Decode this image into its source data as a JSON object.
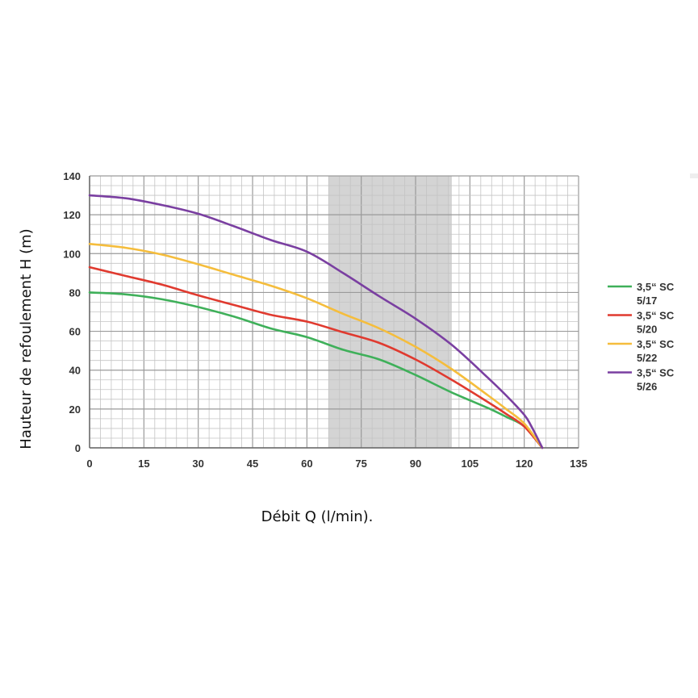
{
  "chart_data": {
    "type": "line",
    "xlabel": "Débit Q (l/min).",
    "ylabel": "Hauteur de refoulement H (m)",
    "xlim": [
      0,
      135
    ],
    "ylim": [
      0,
      140
    ],
    "xticks": [
      "0",
      "15",
      "30",
      "45",
      "60",
      "75",
      "90",
      "105",
      "120",
      "135"
    ],
    "yticks": [
      "0",
      "20",
      "40",
      "60",
      "80",
      "100",
      "120",
      "140"
    ],
    "grid": true,
    "legend_position": "right",
    "shaded_range": [
      66,
      100
    ],
    "series": [
      {
        "name": "3,5“ SC 5/17",
        "name_lines": [
          "3,5“ SC",
          "5/17"
        ],
        "color": "#3fb05a",
        "x": [
          0,
          10,
          20,
          30,
          40,
          50,
          60,
          70,
          80,
          90,
          100,
          110,
          115,
          120,
          125
        ],
        "y": [
          80,
          79,
          76.5,
          72.5,
          67.5,
          61.5,
          57,
          50.5,
          45.5,
          37.5,
          28.5,
          20.5,
          16,
          11,
          0
        ]
      },
      {
        "name": "3,5“ SC 5/20",
        "name_lines": [
          "3,5“ SC",
          "5/20"
        ],
        "color": "#e03a2f",
        "x": [
          0,
          10,
          20,
          30,
          40,
          50,
          60,
          70,
          80,
          90,
          100,
          110,
          115,
          120,
          125
        ],
        "y": [
          93,
          88.5,
          84,
          78.5,
          73.5,
          68.5,
          65,
          59.5,
          54,
          45.5,
          35,
          23.5,
          17.5,
          11,
          0
        ]
      },
      {
        "name": "3,5“ SC 5/22",
        "name_lines": [
          "3,5“ SC",
          "5/22"
        ],
        "color": "#f5bd3c",
        "x": [
          0,
          10,
          20,
          30,
          40,
          50,
          60,
          70,
          80,
          90,
          100,
          110,
          115,
          120,
          125
        ],
        "y": [
          105,
          103,
          99.5,
          94.5,
          89,
          83.5,
          77,
          69,
          61.5,
          52,
          40.5,
          27,
          20,
          12.5,
          0
        ]
      },
      {
        "name": "3,5“ SC 5/26",
        "name_lines": [
          "3,5“ SC",
          "5/26"
        ],
        "color": "#7a3fa1",
        "x": [
          0,
          10,
          20,
          30,
          40,
          50,
          60,
          70,
          80,
          90,
          100,
          110,
          115,
          120,
          122,
          125
        ],
        "y": [
          130,
          128.5,
          125,
          120.5,
          114,
          107,
          101,
          90,
          78,
          66.5,
          53,
          36,
          27,
          17,
          11,
          0
        ]
      }
    ]
  }
}
